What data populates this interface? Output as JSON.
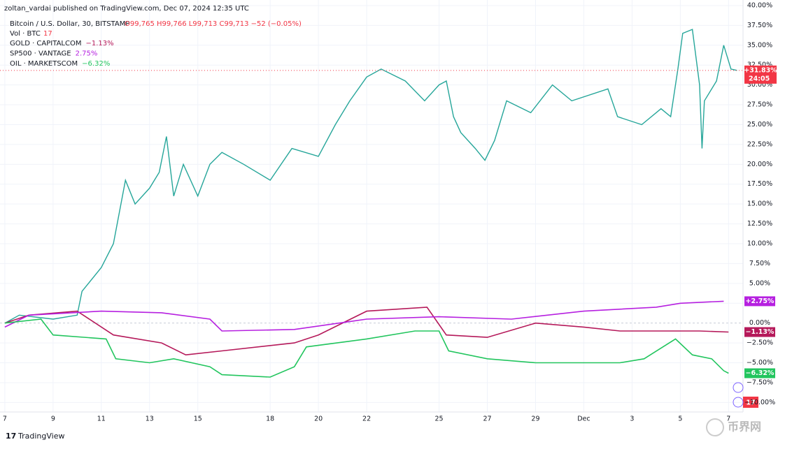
{
  "header": "zoltan_vardai published on TradingView.com, Dec 07, 2024 12:35 UTC",
  "footer": "TradingView",
  "watermark": "币界网",
  "chart_data": {
    "type": "line",
    "main": {
      "name": "Bitcoin / U.S. Dollar, 30, BITSTAMP",
      "ohlc": "O99,765 H99,766 L99,713 C99,713 −52 (−0.05%)",
      "countdown": "24:05"
    },
    "volume": {
      "name": "Vol · BTC",
      "value": 17
    },
    "xlim": [
      -0.2,
      30.6
    ],
    "xticks": [
      {
        "value": 0,
        "label": "7"
      },
      {
        "value": 2,
        "label": "9"
      },
      {
        "value": 4,
        "label": "11"
      },
      {
        "value": 6,
        "label": "13"
      },
      {
        "value": 8,
        "label": "15"
      },
      {
        "value": 11,
        "label": "18"
      },
      {
        "value": 13,
        "label": "20"
      },
      {
        "value": 15,
        "label": "22"
      },
      {
        "value": 18,
        "label": "25"
      },
      {
        "value": 20,
        "label": "27"
      },
      {
        "value": 22,
        "label": "29"
      },
      {
        "value": 24,
        "label": "Dec"
      },
      {
        "value": 26,
        "label": "3"
      },
      {
        "value": 28,
        "label": "5"
      },
      {
        "value": 30,
        "label": "7"
      }
    ],
    "ylim": [
      -11.2,
      40.7
    ],
    "yticks": [
      {
        "value": -10,
        "label": "−10.00%"
      },
      {
        "value": -7.5,
        "label": "−7.50%"
      },
      {
        "value": -5,
        "label": "−5.00%"
      },
      {
        "value": -2.5,
        "label": "−2.50%"
      },
      {
        "value": 0,
        "label": "0.00%"
      },
      {
        "value": 2.5,
        "label": "2.50%"
      },
      {
        "value": 5,
        "label": "5.00%"
      },
      {
        "value": 7.5,
        "label": "7.50%"
      },
      {
        "value": 10,
        "label": "10.00%"
      },
      {
        "value": 12.5,
        "label": "12.50%"
      },
      {
        "value": 15,
        "label": "15.00%"
      },
      {
        "value": 17.5,
        "label": "17.50%"
      },
      {
        "value": 20,
        "label": "20.00%"
      },
      {
        "value": 22.5,
        "label": "22.50%"
      },
      {
        "value": 25,
        "label": "25.00%"
      },
      {
        "value": 27.5,
        "label": "27.50%"
      },
      {
        "value": 30,
        "label": "30.00%"
      },
      {
        "value": 32.5,
        "label": "32.50%"
      },
      {
        "value": 35,
        "label": "35.00%"
      },
      {
        "value": 37.5,
        "label": "37.50%"
      },
      {
        "value": 40,
        "label": "40.00%"
      }
    ],
    "grid": true,
    "series": [
      {
        "name": "Bitcoin / U.S. Dollar",
        "color": "#26a69a",
        "badge_color": "#f23645",
        "last_label": "+31.83%",
        "x": [
          0,
          0.6,
          2,
          3,
          3.2,
          4,
          4.5,
          5,
          5.4,
          6,
          6.4,
          6.7,
          7,
          7.4,
          8,
          8.5,
          9,
          9.9,
          11,
          11.9,
          13,
          13.7,
          14.3,
          15,
          15.6,
          16.6,
          17.4,
          18,
          18.3,
          18.6,
          18.9,
          19.5,
          19.9,
          20.3,
          20.8,
          21.8,
          22.7,
          23.5,
          25,
          25.4,
          26.4,
          27.2,
          27.6,
          27.9,
          28.1,
          28.5,
          28.8,
          28.9,
          29,
          29.5,
          29.8,
          30.1,
          30.35
        ],
        "values": [
          0,
          1,
          0.5,
          1,
          4,
          7,
          10,
          18,
          15,
          17,
          19,
          23.5,
          16,
          20,
          16,
          20,
          21.5,
          20,
          18,
          22,
          21,
          25,
          28,
          31,
          32,
          30.5,
          28,
          30,
          30.5,
          26,
          24,
          22,
          20.5,
          23,
          28,
          26.5,
          30,
          28,
          29.5,
          26,
          25,
          27,
          26,
          32,
          36.5,
          37,
          30,
          22,
          28,
          30.5,
          35,
          32,
          31.83
        ]
      },
      {
        "name": "GOLD · CAPITALCOM",
        "color": "#b5195a",
        "legend_value": "−1.13%",
        "last_label": "−1.13%",
        "x": [
          0,
          1,
          3,
          4.5,
          6.5,
          7.5,
          9,
          12,
          13,
          15,
          17.5,
          18.3,
          20,
          22,
          24,
          25.5,
          27,
          28.8,
          30
        ],
        "values": [
          0,
          1,
          1.5,
          -1.5,
          -2.5,
          -4,
          -3.5,
          -2.5,
          -1.5,
          1.5,
          2,
          -1.5,
          -1.8,
          0,
          -0.5,
          -1,
          -1,
          -1,
          -1.13
        ]
      },
      {
        "name": "SP500 · VANTAGE",
        "color": "#b620e0",
        "legend_value": "2.75%",
        "last_label": "+2.75%",
        "x": [
          0,
          1,
          4,
          6.5,
          8.5,
          9,
          12,
          15,
          18,
          21,
          24,
          27,
          28,
          29.8
        ],
        "values": [
          -0.5,
          1,
          1.5,
          1.3,
          0.5,
          -1,
          -0.8,
          0.5,
          0.8,
          0.5,
          1.5,
          2,
          2.5,
          2.75
        ]
      },
      {
        "name": "OIL · MARKETSCOM",
        "color": "#22c55e",
        "legend_value": "−6.32%",
        "last_label": "−6.32%",
        "x": [
          0,
          1.5,
          2,
          4.2,
          4.6,
          6,
          7,
          8.5,
          9,
          11,
          12,
          12.5,
          15,
          17,
          18,
          18.4,
          20,
          22,
          24,
          25.5,
          26.5,
          27.8,
          28.5,
          29.3,
          29.8,
          30
        ],
        "values": [
          0,
          0.5,
          -1.5,
          -2,
          -4.5,
          -5,
          -4.5,
          -5.5,
          -6.5,
          -6.8,
          -5.5,
          -3,
          -2,
          -1,
          -1,
          -3.5,
          -4.5,
          -5,
          -5,
          -5,
          -4.5,
          -2,
          -4,
          -4.5,
          -6,
          -6.32
        ]
      }
    ]
  }
}
